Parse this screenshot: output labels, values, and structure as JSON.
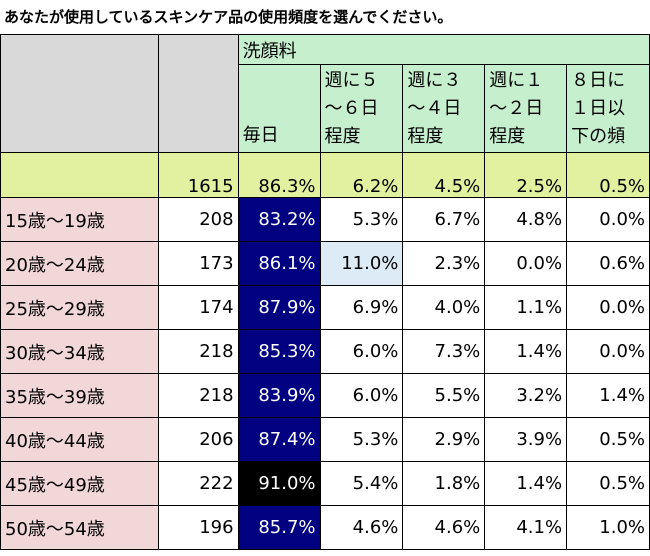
{
  "title": "あなたが使用しているスキンケア品の使用頻度を選んでください。",
  "header": {
    "category": "洗顔料",
    "columns": [
      [
        "毎日"
      ],
      [
        "週に５",
        "～６日",
        "程度"
      ],
      [
        "週に３",
        "～４日",
        "程度"
      ],
      [
        "週に１",
        "～２日",
        "程度"
      ],
      [
        "８日に",
        "１日以",
        "下の頻"
      ]
    ]
  },
  "total": {
    "n": "1615",
    "values": [
      "86.3%",
      "6.2%",
      "4.5%",
      "2.5%",
      "0.5%"
    ]
  },
  "rows": [
    {
      "label": "15歳～19歳",
      "n": "208",
      "values": [
        "83.2%",
        "5.3%",
        "6.7%",
        "4.8%",
        "0.0%"
      ]
    },
    {
      "label": "20歳～24歳",
      "n": "173",
      "values": [
        "86.1%",
        "11.0%",
        "2.3%",
        "0.0%",
        "0.6%"
      ]
    },
    {
      "label": "25歳～29歳",
      "n": "174",
      "values": [
        "87.9%",
        "6.9%",
        "4.0%",
        "1.1%",
        "0.0%"
      ]
    },
    {
      "label": "30歳～34歳",
      "n": "218",
      "values": [
        "85.3%",
        "6.0%",
        "7.3%",
        "1.4%",
        "0.0%"
      ]
    },
    {
      "label": "35歳～39歳",
      "n": "218",
      "values": [
        "83.9%",
        "6.0%",
        "5.5%",
        "3.2%",
        "1.4%"
      ]
    },
    {
      "label": "40歳～44歳",
      "n": "206",
      "values": [
        "87.4%",
        "5.3%",
        "2.9%",
        "3.9%",
        "0.5%"
      ]
    },
    {
      "label": "45歳～49歳",
      "n": "222",
      "values": [
        "91.0%",
        "5.4%",
        "1.8%",
        "1.4%",
        "0.5%"
      ]
    },
    {
      "label": "50歳～54歳",
      "n": "196",
      "values": [
        "85.7%",
        "4.6%",
        "4.6%",
        "4.1%",
        "1.0%"
      ]
    }
  ],
  "colors": {
    "daily_column": "#000080",
    "daily_max": "#000000",
    "highlight_cell": "#ddebf7",
    "age_label_bg": "#f2d7d9",
    "total_row_bg": "#e2f19f",
    "header_bg": "#c6efce"
  }
}
